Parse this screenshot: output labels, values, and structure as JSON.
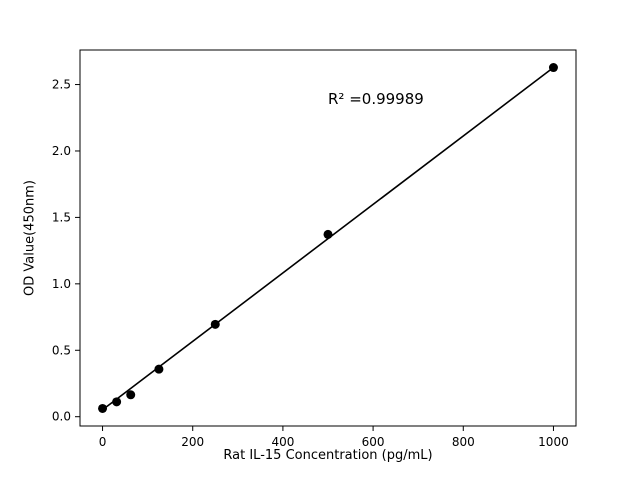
{
  "figure": {
    "background": "#ffffff"
  },
  "chart_data": {
    "type": "scatter",
    "title": "",
    "xlabel": "Rat IL-15 Concentration (pg/mL)",
    "ylabel": "OD Value(450nm)",
    "annotation": "R² =0.99989",
    "x": [
      0,
      31.25,
      62.5,
      125,
      250,
      500,
      1000
    ],
    "y": [
      0.062,
      0.112,
      0.165,
      0.358,
      0.695,
      1.372,
      2.628
    ],
    "fit_line": {
      "x": [
        0,
        1000
      ],
      "y": [
        0.052,
        2.628
      ]
    },
    "xlim": [
      -50,
      1050
    ],
    "ylim": [
      -0.07,
      2.76
    ],
    "xticks": [
      0,
      200,
      400,
      600,
      800,
      1000
    ],
    "yticks": [
      "0.0",
      "0.5",
      "1.0",
      "1.5",
      "2.0",
      "2.5"
    ],
    "marker_color": "#000000",
    "line_color": "#000000",
    "grid": false,
    "legend": "none"
  }
}
